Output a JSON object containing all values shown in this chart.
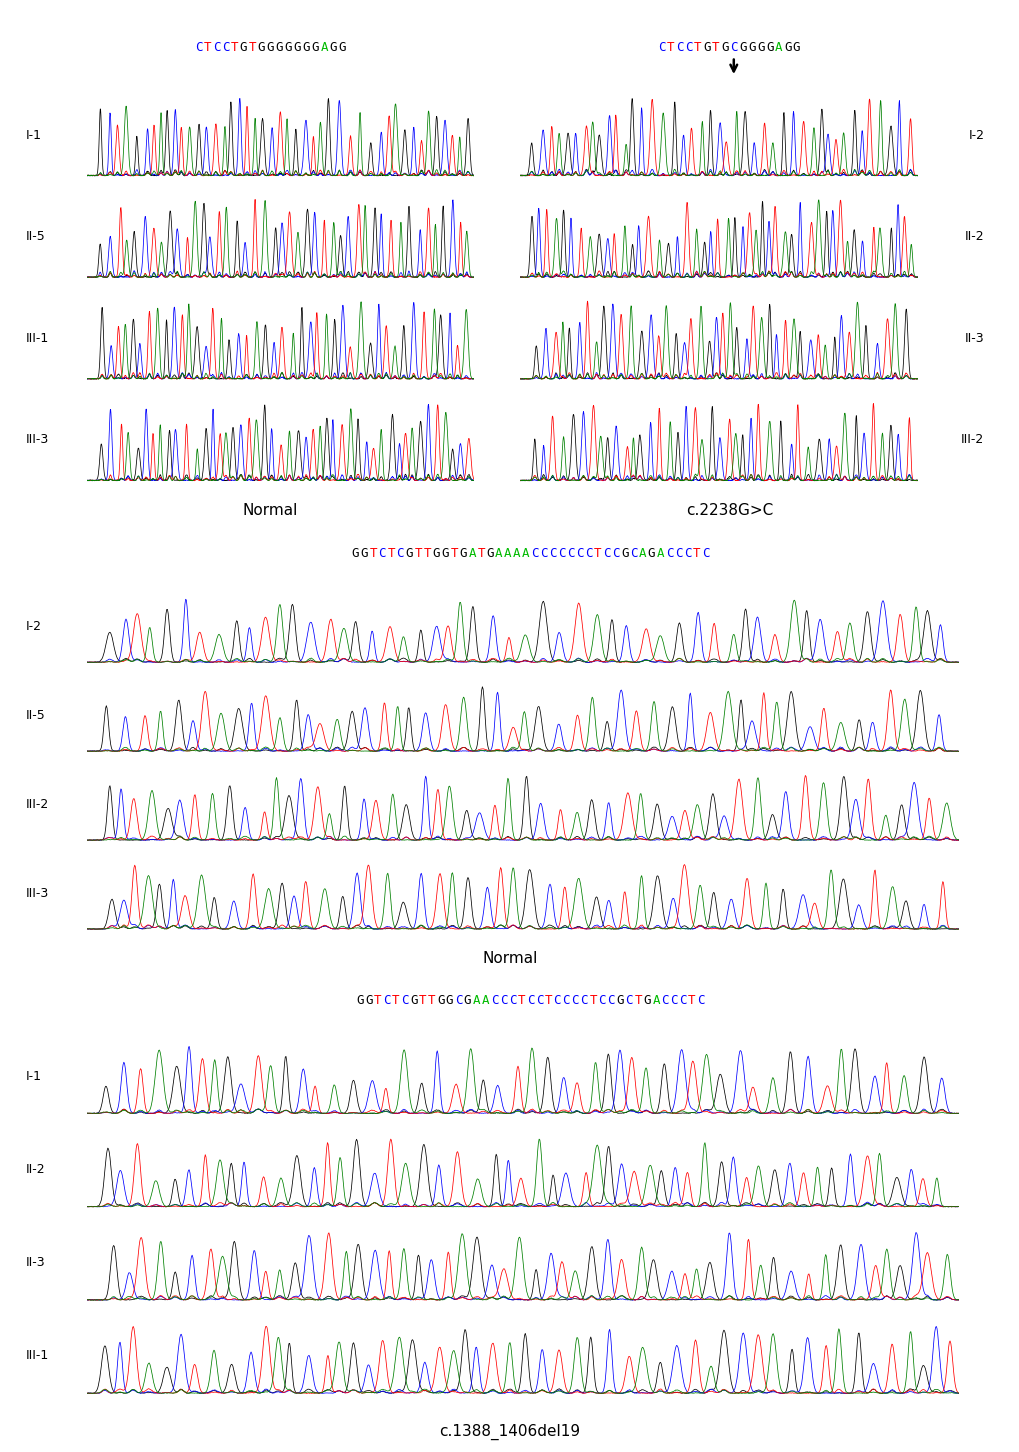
{
  "seq1_left": "CTCCTGTGGGGGGGAGG",
  "seq1_right": "CTCCTGTGCGGGGAGG",
  "seq2": "GGTCTCGTTGGTGATGAAAACCCCCCCTCCGCAGACCCTC",
  "seq3": "GGTCTCGTTGGCGAACCCTCCTCCCCTCCGCTGACCCTC",
  "label_normal": "Normal",
  "label_c2238": "c.2238G>C",
  "label_mid_normal": "Normal",
  "label_bot": "c.1388_1406del19",
  "rows_topleft": [
    "I-1",
    "II-5",
    "III-1",
    "III-3"
  ],
  "rows_topright": [
    "I-2",
    "II-2",
    "II-3",
    "III-2"
  ],
  "rows_mid": [
    "I-2",
    "II-5",
    "III-2",
    "III-3"
  ],
  "rows_bot": [
    "I-1",
    "II-2",
    "II-3",
    "III-1"
  ],
  "base_colors": {
    "A": "#00BB00",
    "T": "#FF0000",
    "C": "#0000FF",
    "G": "#000000"
  },
  "trace_colors": [
    "black",
    "blue",
    "red",
    "green"
  ],
  "fig_width": 10.2,
  "fig_height": 14.52
}
